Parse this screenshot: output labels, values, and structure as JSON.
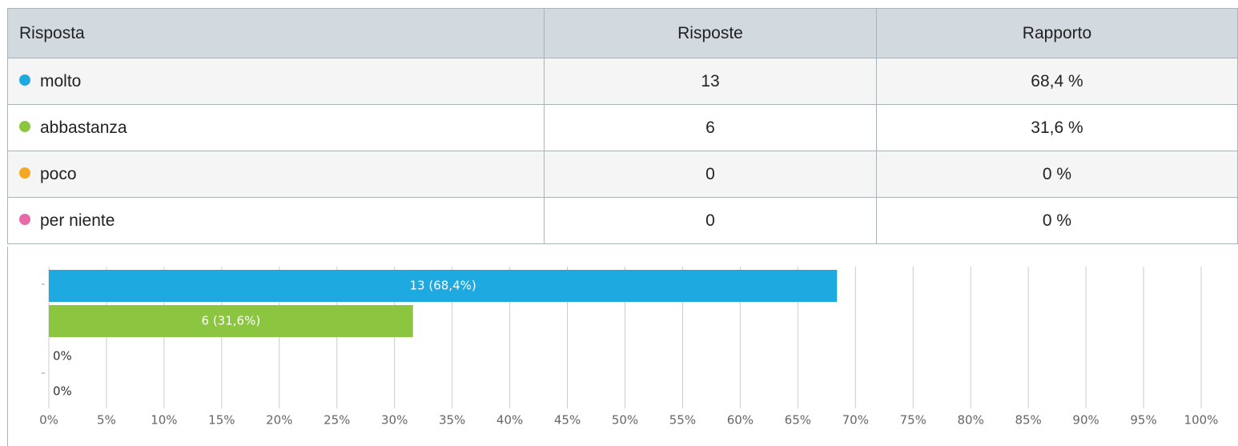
{
  "table": {
    "header": [
      "Risposta",
      "Risposte",
      "Rapporto"
    ],
    "rows": [
      [
        "molto",
        "13",
        "68,4 %"
      ],
      [
        "abbastanza",
        "6",
        "31,6 %"
      ],
      [
        "poco",
        "0",
        "0 %"
      ],
      [
        "per niente",
        "0",
        "0 %"
      ]
    ]
  },
  "chart_data": {
    "type": "barh",
    "categories": [
      null,
      null,
      null,
      null
    ],
    "values": [
      68.4,
      31.6,
      0,
      0
    ],
    "value_labels": [
      "13 (68,4%)",
      "6 (31,6%)",
      "0%",
      "0%"
    ],
    "colors": [
      "#1fa9e1",
      "#8cc540",
      "#f7a823",
      "#e86aa6"
    ],
    "xlim": [
      0,
      100
    ],
    "xticks": [
      {
        "value": 0,
        "label": "0%"
      },
      {
        "value": 5,
        "label": "5%"
      },
      {
        "value": 10,
        "label": "10%"
      },
      {
        "value": 15,
        "label": "15%"
      },
      {
        "value": 20,
        "label": "20%"
      },
      {
        "value": 25,
        "label": "25%"
      },
      {
        "value": 30,
        "label": "30%"
      },
      {
        "value": 35,
        "label": "35%"
      },
      {
        "value": 40,
        "label": "40%"
      },
      {
        "value": 45,
        "label": "45%"
      },
      {
        "value": 50,
        "label": "50%"
      },
      {
        "value": 55,
        "label": "55%"
      },
      {
        "value": 60,
        "label": "60%"
      },
      {
        "value": 65,
        "label": "65%"
      },
      {
        "value": 70,
        "label": "70%"
      },
      {
        "value": 75,
        "label": "75%"
      },
      {
        "value": 80,
        "label": "80%"
      },
      {
        "value": 85,
        "label": "85%"
      },
      {
        "value": 90,
        "label": "90%"
      },
      {
        "value": 95,
        "label": "95%"
      },
      {
        "value": 100,
        "label": "100%"
      }
    ],
    "grid": true
  }
}
